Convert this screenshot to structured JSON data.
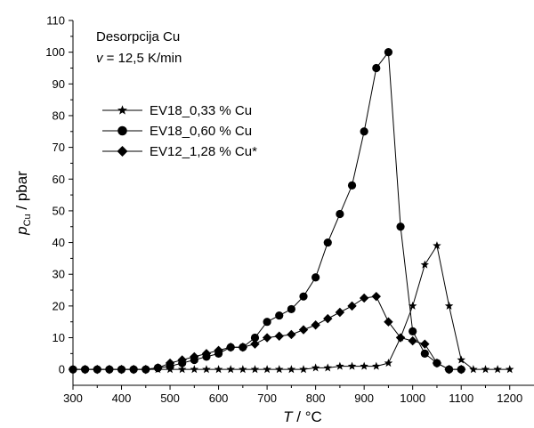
{
  "chart_data": {
    "type": "line",
    "annotation": {
      "line1": "Desorpcija Cu",
      "line2_var": "v",
      "line2_rest": " = 12,5 K/min"
    },
    "xlabel_var": "T",
    "xlabel_unit": " / °C",
    "ylabel_var": "p",
    "ylabel_sub": "Cu",
    "ylabel_unit": " / pbar",
    "xlim": [
      300,
      1250
    ],
    "ylim": [
      -5,
      110
    ],
    "xticks": [
      300,
      400,
      500,
      600,
      700,
      800,
      900,
      1000,
      1100,
      1200
    ],
    "xtick_labels": [
      "300",
      "400",
      "500",
      "600",
      "700",
      "800",
      "900",
      "1000",
      "1100",
      "1200"
    ],
    "yticks": [
      0,
      10,
      20,
      30,
      40,
      50,
      60,
      70,
      80,
      90,
      100,
      110
    ],
    "ytick_labels": [
      "0",
      "10",
      "20",
      "30",
      "40",
      "50",
      "60",
      "70",
      "80",
      "90",
      "100",
      "110"
    ],
    "grid": false,
    "legend_position": "upper-left",
    "series": [
      {
        "name": "EV18_0,33 % Cu",
        "marker": "star",
        "x": [
          300,
          325,
          350,
          375,
          400,
          425,
          450,
          475,
          500,
          525,
          550,
          575,
          600,
          625,
          650,
          675,
          700,
          725,
          750,
          775,
          800,
          825,
          850,
          875,
          900,
          925,
          950,
          975,
          1000,
          1025,
          1050,
          1075,
          1100,
          1125,
          1150,
          1175,
          1200
        ],
        "y": [
          0,
          0,
          0,
          0,
          0,
          0,
          0,
          0,
          0,
          0,
          0,
          0,
          0,
          0,
          0,
          0,
          0,
          0,
          0,
          0,
          0.5,
          0.5,
          1,
          1,
          1,
          1,
          2,
          10,
          20,
          33,
          39,
          20,
          3,
          0,
          0,
          0,
          0
        ]
      },
      {
        "name": "EV18_0,60 % Cu",
        "marker": "circle",
        "x": [
          300,
          325,
          350,
          375,
          400,
          425,
          450,
          475,
          500,
          525,
          550,
          575,
          600,
          625,
          650,
          675,
          700,
          725,
          750,
          775,
          800,
          825,
          850,
          875,
          900,
          925,
          950,
          975,
          1000,
          1025,
          1050,
          1075,
          1100
        ],
        "y": [
          0,
          0,
          0,
          0,
          0,
          0,
          0,
          0.5,
          1,
          2,
          3,
          4,
          5,
          7,
          7,
          10,
          15,
          17,
          19,
          23,
          29,
          40,
          49,
          58,
          75,
          95,
          100,
          45,
          12,
          5,
          2,
          0,
          0
        ]
      },
      {
        "name": "EV12_1,28 % Cu*",
        "marker": "diamond",
        "x": [
          300,
          325,
          350,
          375,
          400,
          425,
          450,
          475,
          500,
          525,
          550,
          575,
          600,
          625,
          650,
          675,
          700,
          725,
          750,
          775,
          800,
          825,
          850,
          875,
          900,
          925,
          950,
          975,
          1000,
          1025,
          1050,
          1075,
          1100
        ],
        "y": [
          0,
          0,
          0,
          0,
          0,
          0,
          0,
          0.5,
          2,
          3,
          4,
          5,
          6,
          7,
          7,
          8,
          10,
          10.5,
          11,
          12.5,
          14,
          16,
          18,
          20,
          22.5,
          23,
          15,
          10,
          9,
          8,
          2,
          0,
          0
        ]
      }
    ]
  }
}
